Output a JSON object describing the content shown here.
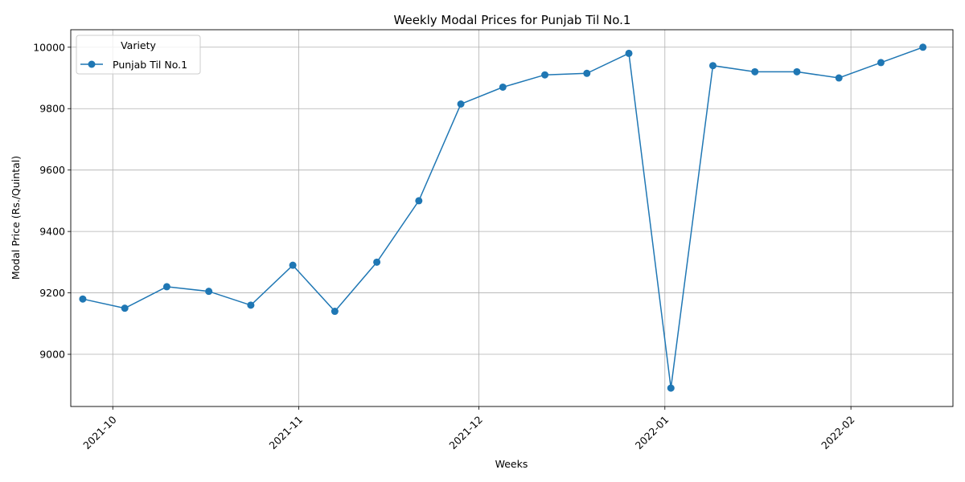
{
  "chart_data": {
    "type": "line",
    "title": "Weekly Modal Prices for Punjab Til No.1",
    "xlabel": "Weeks",
    "ylabel": "Modal Price (Rs./Quintal)",
    "grid": true,
    "legend": {
      "title": "Variety",
      "placement": "top-left"
    },
    "x_ticks": [
      "2021-10",
      "2021-11",
      "2021-12",
      "2022-01",
      "2022-02"
    ],
    "y_ticks": [
      9000,
      9200,
      9400,
      9600,
      9800,
      10000
    ],
    "x_range": [
      "2021-09-24",
      "2022-02-18"
    ],
    "ylim": [
      8830,
      10057
    ],
    "series": [
      {
        "name": "Punjab Til No.1",
        "color": "#1f77b4",
        "marker": "circle",
        "x": [
          "2021-09-26",
          "2021-10-03",
          "2021-10-10",
          "2021-10-17",
          "2021-10-24",
          "2021-10-31",
          "2021-11-07",
          "2021-11-14",
          "2021-11-21",
          "2021-11-28",
          "2021-12-05",
          "2021-12-12",
          "2021-12-19",
          "2021-12-26",
          "2022-01-02",
          "2022-01-09",
          "2022-01-16",
          "2022-01-23",
          "2022-01-30",
          "2022-02-06",
          "2022-02-13"
        ],
        "values": [
          9180,
          9150,
          9220,
          9205,
          9160,
          9290,
          9140,
          9300,
          9500,
          9815,
          9870,
          9910,
          9915,
          9980,
          8890,
          9940,
          9920,
          9920,
          9900,
          9950,
          10000
        ]
      }
    ]
  }
}
